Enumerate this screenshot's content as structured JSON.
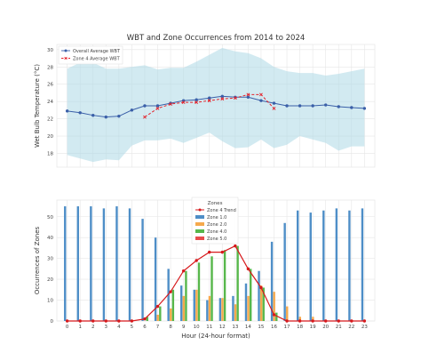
{
  "chart_data": [
    {
      "type": "line",
      "title": "WBT and Zone Occurrences from 2014 to 2024",
      "xlabel": "",
      "ylabel": "Wet Bulb Temperature (°C)",
      "x": [
        0,
        1,
        2,
        3,
        4,
        5,
        6,
        7,
        8,
        9,
        10,
        11,
        12,
        13,
        14,
        15,
        16,
        17,
        18,
        19,
        20,
        21,
        22,
        23
      ],
      "xlim": [
        -0.8,
        23.8
      ],
      "ylim": [
        16.4,
        30.6
      ],
      "yticks": [
        18,
        20,
        22,
        24,
        26,
        28,
        30
      ],
      "grid": true,
      "legend_position": "top-left",
      "band": {
        "color": "#add8e6",
        "upper": [
          27.8,
          28.5,
          28.5,
          27.8,
          27.8,
          28.0,
          28.2,
          27.7,
          27.9,
          27.9,
          28.6,
          29.4,
          30.2,
          29.8,
          29.6,
          29.0,
          28.0,
          27.5,
          27.3,
          27.3,
          27.0,
          27.2,
          27.5,
          27.8
        ],
        "lower": [
          17.8,
          17.4,
          17.0,
          17.3,
          17.2,
          18.9,
          19.5,
          19.5,
          19.7,
          19.2,
          19.8,
          20.4,
          19.4,
          18.6,
          18.7,
          19.6,
          18.6,
          19.0,
          20.0,
          19.6,
          19.2,
          18.3,
          18.8,
          18.8
        ]
      },
      "series": [
        {
          "name": "Overall Average WBT",
          "color": "#3a5fa8",
          "style": "solid",
          "marker": "circle",
          "values": [
            22.9,
            22.7,
            22.4,
            22.2,
            22.3,
            23.0,
            23.5,
            23.5,
            23.8,
            24.1,
            24.2,
            24.4,
            24.6,
            24.5,
            24.5,
            24.1,
            23.8,
            23.5,
            23.5,
            23.5,
            23.6,
            23.4,
            23.3,
            23.2
          ]
        },
        {
          "name": "Zone 4 Average WBT",
          "color": "#e4232c",
          "style": "dashed",
          "marker": "x",
          "values": [
            null,
            null,
            null,
            null,
            null,
            null,
            22.2,
            23.2,
            23.7,
            23.9,
            23.9,
            24.1,
            24.3,
            24.4,
            24.8,
            24.8,
            23.2,
            null,
            null,
            null,
            null,
            null,
            null,
            null
          ]
        }
      ]
    },
    {
      "type": "bar",
      "title": "",
      "xlabel": "Hour (24-hour format)",
      "ylabel": "Occurrences of Zones",
      "categories": [
        "0",
        "1",
        "2",
        "3",
        "4",
        "5",
        "6",
        "7",
        "8",
        "9",
        "10",
        "11",
        "12",
        "13",
        "14",
        "15",
        "16",
        "17",
        "18",
        "19",
        "20",
        "21",
        "22",
        "23"
      ],
      "ylim": [
        0,
        58
      ],
      "yticks": [
        0,
        10,
        20,
        30,
        40,
        50
      ],
      "grid": true,
      "legend_title": "Zones",
      "legend_position": "top-center",
      "series": [
        {
          "name": "Zone 1.0",
          "color": "#4e8ec7",
          "values": [
            55,
            55,
            55,
            54,
            55,
            54,
            49,
            40,
            25,
            17,
            15,
            10,
            11,
            12,
            18,
            24,
            38,
            47,
            53,
            52,
            53,
            54,
            53,
            54
          ]
        },
        {
          "name": "Zone 2.0",
          "color": "#f5a94c",
          "values": [
            0,
            0,
            0,
            0,
            0,
            0,
            0,
            3,
            6,
            12,
            15,
            12,
            11,
            8,
            12,
            17,
            14,
            7,
            2,
            2,
            0,
            0,
            0,
            0
          ]
        },
        {
          "name": "Zone 4.0",
          "color": "#57b74b",
          "values": [
            0,
            0,
            0,
            0,
            0,
            0,
            2,
            7,
            15,
            24,
            28,
            31,
            34,
            36,
            25,
            16,
            4,
            0,
            0,
            0,
            0,
            0,
            0,
            0
          ]
        },
        {
          "name": "Zone 5.0",
          "color": "#e74c4c",
          "values": [
            0,
            0,
            0,
            0,
            0,
            0,
            0,
            0,
            0,
            0,
            0,
            0,
            0,
            0,
            0,
            0,
            0,
            0,
            0,
            0,
            0,
            0,
            0,
            0
          ]
        }
      ],
      "trend": {
        "name": "Zone 4 Trend",
        "color": "#d7191c",
        "values": [
          0,
          0,
          0,
          0,
          0,
          0,
          1,
          7,
          14,
          24,
          29,
          33,
          33,
          36,
          25,
          16,
          3,
          0,
          0,
          0,
          0,
          0,
          0,
          0
        ]
      }
    }
  ]
}
